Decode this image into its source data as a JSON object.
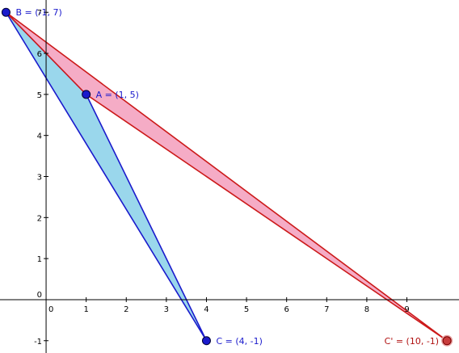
{
  "axes": {
    "x_range": [
      -1.15,
      10.3
    ],
    "y_range": [
      -1.3,
      7.3
    ],
    "x_ticks": [
      0,
      1,
      2,
      3,
      4,
      5,
      6,
      7,
      8,
      9
    ],
    "y_ticks": [
      -1,
      0,
      1,
      2,
      3,
      4,
      5,
      6,
      7
    ],
    "x_tick_labels": [
      "0",
      "1",
      "2",
      "3",
      "4",
      "5",
      "6",
      "7",
      "8",
      "9"
    ],
    "y_tick_labels": [
      "-1",
      "0",
      "1",
      "2",
      "3",
      "4",
      "5",
      "6",
      "7"
    ],
    "grid": false,
    "axis_color": "#000000"
  },
  "points": [
    {
      "id": "B",
      "x": -1,
      "y": 7,
      "label": "B = (-1, 7)",
      "color": "#1a1acc",
      "fill": "#1a1acc"
    },
    {
      "id": "A",
      "x": 1,
      "y": 5,
      "label": "A = (1, 5)",
      "color": "#1a1acc",
      "fill": "#1a1acc"
    },
    {
      "id": "C",
      "x": 4,
      "y": -1,
      "label": "C = (4, -1)",
      "color": "#1a1acc",
      "fill": "#1a1acc"
    },
    {
      "id": "C2",
      "x": 10,
      "y": -1,
      "label": "C' = (10, -1)",
      "color": "#b01010",
      "fill": "#c83c3c"
    }
  ],
  "polygons": [
    {
      "id": "triangle-abc",
      "vertices": [
        "B",
        "A",
        "C"
      ],
      "fill": "#8fd3ea",
      "stroke": "#1a1acc"
    },
    {
      "id": "triangle-abc2",
      "vertices": [
        "B",
        "A",
        "C2"
      ],
      "fill": "#f4a3c0",
      "stroke": "#cc1a1a"
    }
  ]
}
